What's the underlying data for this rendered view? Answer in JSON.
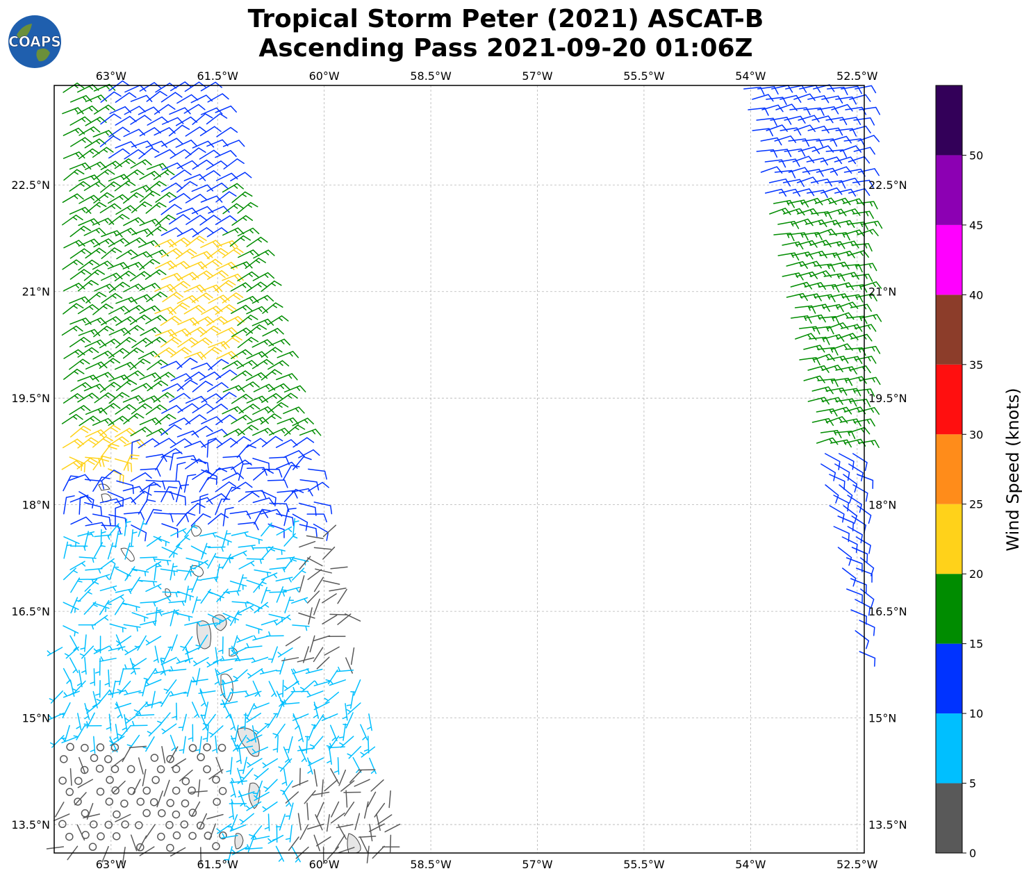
{
  "title": {
    "line1": "Tropical Storm Peter (2021) ASCAT-B",
    "line2": "Ascending Pass 2021-09-20 01:06Z"
  },
  "logo": {
    "text": "COAPS"
  },
  "map": {
    "lon_range": [
      -63.8,
      -52.4
    ],
    "lat_range": [
      13.1,
      23.9
    ],
    "lon_ticks": [
      {
        "value": -63,
        "label": "63°W"
      },
      {
        "value": -61.5,
        "label": "61.5°W"
      },
      {
        "value": -60,
        "label": "60°W"
      },
      {
        "value": -58.5,
        "label": "58.5°W"
      },
      {
        "value": -57,
        "label": "57°W"
      },
      {
        "value": -55.5,
        "label": "55.5°W"
      },
      {
        "value": -54,
        "label": "54°W"
      },
      {
        "value": -52.5,
        "label": "52.5°W"
      }
    ],
    "lat_ticks": [
      {
        "value": 22.5,
        "label": "22.5°N"
      },
      {
        "value": 21,
        "label": "21°N"
      },
      {
        "value": 19.5,
        "label": "19.5°N"
      },
      {
        "value": 18,
        "label": "18°N"
      },
      {
        "value": 16.5,
        "label": "16.5°N"
      },
      {
        "value": 15,
        "label": "15°N"
      },
      {
        "value": 13.5,
        "label": "13.5°N"
      }
    ],
    "gridlines": true
  },
  "colorbar": {
    "label": "Wind Speed (knots)",
    "ticks": [
      "0",
      "5",
      "10",
      "15",
      "20",
      "25",
      "30",
      "35",
      "40",
      "45",
      "50"
    ],
    "bins": [
      {
        "min": 0,
        "max": 5,
        "color": "#595959"
      },
      {
        "min": 5,
        "max": 10,
        "color": "#00bfff"
      },
      {
        "min": 10,
        "max": 15,
        "color": "#0033ff"
      },
      {
        "min": 15,
        "max": 20,
        "color": "#008c00"
      },
      {
        "min": 20,
        "max": 25,
        "color": "#ffd21a"
      },
      {
        "min": 25,
        "max": 30,
        "color": "#ff8c1a"
      },
      {
        "min": 30,
        "max": 35,
        "color": "#ff0f0f"
      },
      {
        "min": 35,
        "max": 40,
        "color": "#8c3d2a"
      },
      {
        "min": 40,
        "max": 45,
        "color": "#ff00ff"
      },
      {
        "min": 45,
        "max": 50,
        "color": "#8c00b3"
      },
      {
        "min": 50,
        "max": 55,
        "color": "#330059"
      }
    ]
  }
}
